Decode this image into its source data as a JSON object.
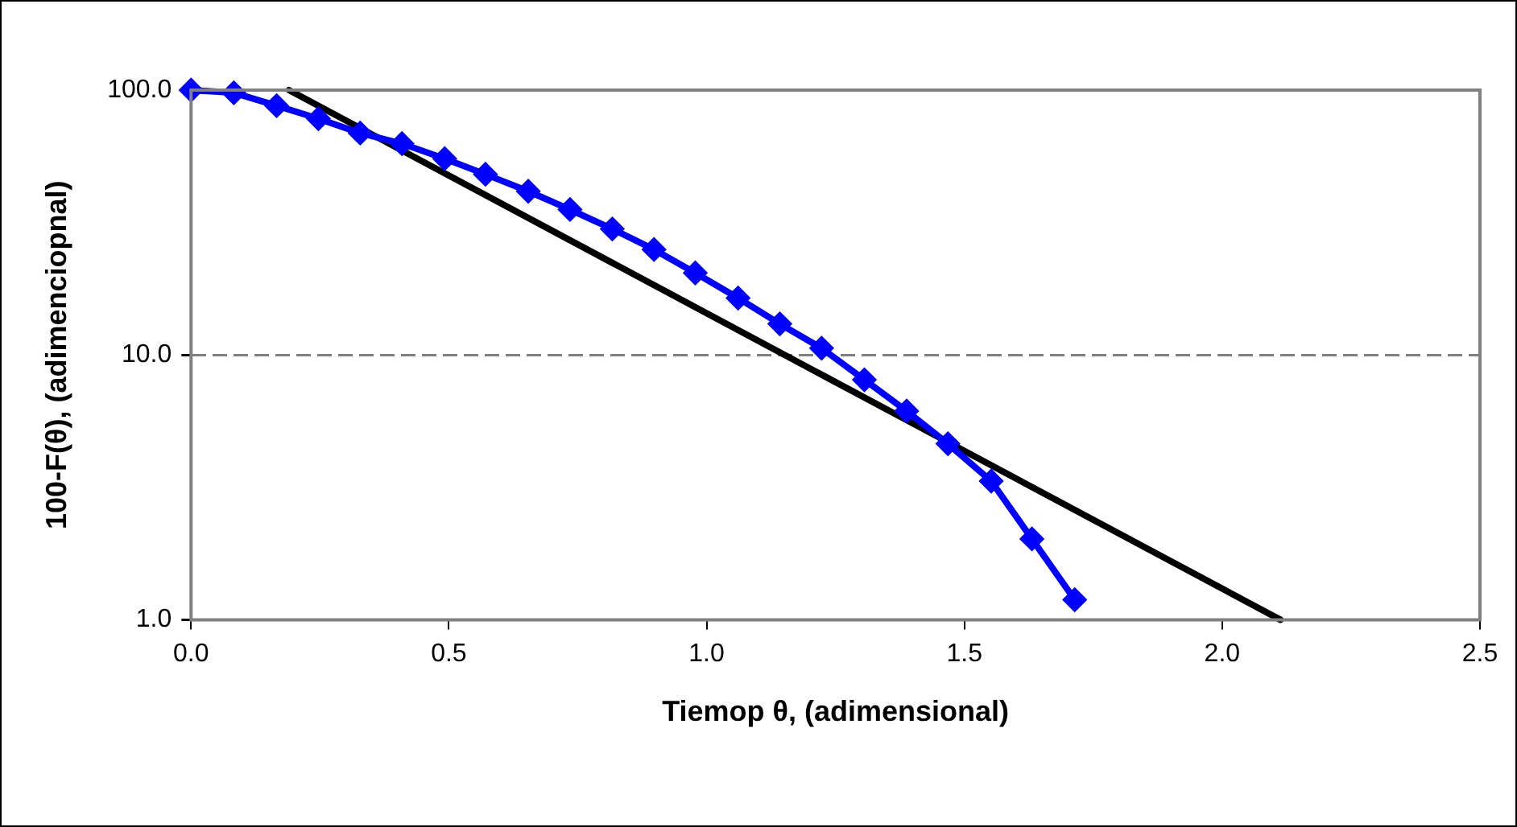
{
  "chart_data": {
    "type": "line",
    "xlabel": "Tiemop θ, (adimensional)",
    "ylabel": "100-F(θ), (adimenciopnal)",
    "log": "y",
    "grid": "y",
    "legend": false,
    "xlim": [
      0,
      2.5
    ],
    "xticks": [
      {
        "value": 0,
        "label": "0.0"
      },
      {
        "value": 0.5,
        "label": "0.5"
      },
      {
        "value": 1,
        "label": "1.0"
      },
      {
        "value": 1.5,
        "label": "1.5"
      },
      {
        "value": 2,
        "label": "2.0"
      },
      {
        "value": 2.5,
        "label": "2.5"
      }
    ],
    "ylim": [
      1,
      100
    ],
    "yticks": [
      {
        "value": 1,
        "label": "1.0"
      },
      {
        "value": 10,
        "label": "10.0"
      },
      {
        "value": 100,
        "label": "100.0"
      }
    ],
    "series": [
      {
        "color": "#0000ff",
        "marker": "diamond",
        "line_style": "solid",
        "x": [
          0,
          0.083,
          0.166,
          0.247,
          0.328,
          0.409,
          0.492,
          0.571,
          0.654,
          0.735,
          0.817,
          0.898,
          0.978,
          1.061,
          1.142,
          1.223,
          1.306,
          1.388,
          1.468,
          1.552,
          1.631,
          1.714
        ],
        "values": [
          100,
          97.7,
          87.3,
          78,
          68.8,
          62.8,
          55.1,
          48.1,
          41.5,
          35.4,
          29.9,
          25,
          20.4,
          16.4,
          13.1,
          10.6,
          8.06,
          6.14,
          4.62,
          3.34,
          2.02,
          1.19
        ]
      },
      {
        "color": "#000000",
        "marker": "none",
        "line_style": "solid",
        "x": [
          0.19,
          2.113
        ],
        "values": [
          100,
          1
        ]
      }
    ]
  }
}
